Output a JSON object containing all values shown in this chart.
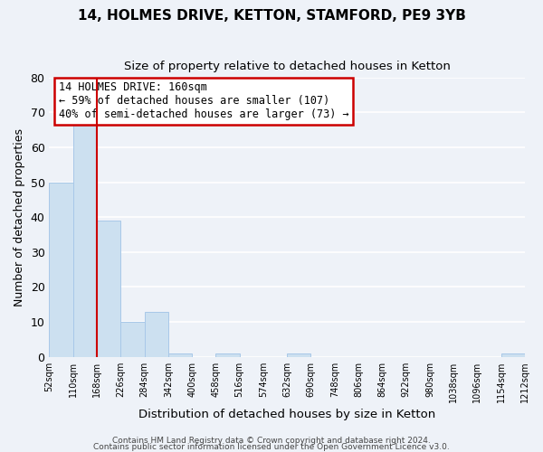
{
  "title": "14, HOLMES DRIVE, KETTON, STAMFORD, PE9 3YB",
  "subtitle": "Size of property relative to detached houses in Ketton",
  "xlabel": "Distribution of detached houses by size in Ketton",
  "ylabel": "Number of detached properties",
  "bin_edges": [
    52,
    110,
    168,
    226,
    284,
    342,
    400,
    458,
    516,
    574,
    632,
    690,
    748,
    806,
    864,
    922,
    980,
    1038,
    1096,
    1154,
    1212
  ],
  "bin_counts": [
    50,
    67,
    39,
    10,
    13,
    1,
    0,
    1,
    0,
    0,
    1,
    0,
    0,
    0,
    0,
    0,
    0,
    0,
    0,
    1
  ],
  "bar_color": "#cce0f0",
  "bar_edgecolor": "#a8c8e8",
  "property_line_x": 168,
  "property_line_color": "#cc0000",
  "annotation_box_edgecolor": "#cc0000",
  "annotation_lines": [
    "14 HOLMES DRIVE: 160sqm",
    "← 59% of detached houses are smaller (107)",
    "40% of semi-detached houses are larger (73) →"
  ],
  "ylim": [
    0,
    80
  ],
  "yticks": [
    0,
    10,
    20,
    30,
    40,
    50,
    60,
    70,
    80
  ],
  "tick_labels": [
    "52sqm",
    "110sqm",
    "168sqm",
    "226sqm",
    "284sqm",
    "342sqm",
    "400sqm",
    "458sqm",
    "516sqm",
    "574sqm",
    "632sqm",
    "690sqm",
    "748sqm",
    "806sqm",
    "864sqm",
    "922sqm",
    "980sqm",
    "1038sqm",
    "1096sqm",
    "1154sqm",
    "1212sqm"
  ],
  "footer1": "Contains HM Land Registry data © Crown copyright and database right 2024.",
  "footer2": "Contains public sector information licensed under the Open Government Licence v3.0.",
  "background_color": "#eef2f8",
  "plot_background": "#eef2f8",
  "grid_color": "#ffffff",
  "title_fontsize": 11,
  "subtitle_fontsize": 9.5,
  "annotation_fontsize": 8.5
}
